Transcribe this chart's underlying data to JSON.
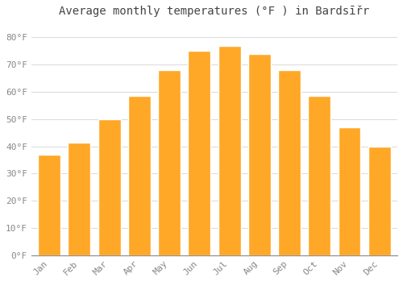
{
  "title": "Average monthly temperatures (°F ) in Bardsīřr",
  "months": [
    "Jan",
    "Feb",
    "Mar",
    "Apr",
    "May",
    "Jun",
    "Jul",
    "Aug",
    "Sep",
    "Oct",
    "Nov",
    "Dec"
  ],
  "values": [
    37,
    41.5,
    50,
    58.5,
    68,
    75,
    77,
    74,
    68,
    58.5,
    47,
    40
  ],
  "bar_color": "#FFA726",
  "bar_edge_color": "#ffffff",
  "ylim": [
    0,
    85
  ],
  "yticks": [
    0,
    10,
    20,
    30,
    40,
    50,
    60,
    70,
    80
  ],
  "ytick_labels": [
    "0°F",
    "10°F",
    "20°F",
    "30°F",
    "40°F",
    "50°F",
    "60°F",
    "70°F",
    "80°F"
  ],
  "background_color": "#ffffff",
  "grid_color": "#dddddd",
  "title_fontsize": 10,
  "tick_fontsize": 8,
  "title_color": "#444444",
  "tick_color": "#888888"
}
